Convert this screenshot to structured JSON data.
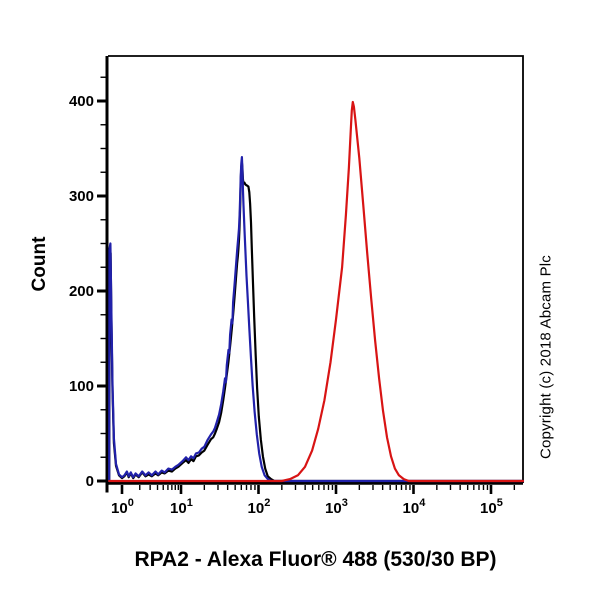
{
  "figure": {
    "title": "RPA2 - Alexa Fluor® 488 (530/30 BP)",
    "y_axis_title": "Count",
    "copyright": "Copyright (c) 2018 Abcam Plc"
  },
  "colors": {
    "background": "#ffffff",
    "axis": "#000000",
    "black_curve": "#000000",
    "blue_curve": "#2121aa",
    "red_curve": "#d81414"
  },
  "chart_data": {
    "type": "line",
    "subtype": "flow-cytometry-histogram",
    "title": "RPA2 - Alexa Fluor® 488 (530/30 BP)",
    "xlabel": "RPA2 - Alexa Fluor® 488 (530/30 BP)",
    "ylabel": "Count",
    "xscale": "log",
    "grid": false,
    "legend": "none",
    "xtick_exponents": [
      0,
      1,
      2,
      3,
      4,
      5
    ],
    "yticks": [
      0,
      100,
      200,
      300,
      400
    ],
    "y_minor_step": 25,
    "ylim": [
      0,
      447
    ],
    "xlim": [
      0.6,
      260000
    ],
    "series": [
      {
        "name": "black-curve",
        "color": "#000000",
        "peak_x": 60,
        "peak_count": 336,
        "points": [
          [
            0.607,
            0
          ],
          [
            0.62,
            236
          ],
          [
            0.64,
            240
          ],
          [
            0.66,
            170
          ],
          [
            0.69,
            95
          ],
          [
            0.73,
            40
          ],
          [
            0.79,
            16
          ],
          [
            0.89,
            6
          ],
          [
            1.0,
            3
          ],
          [
            1.1,
            5
          ],
          [
            1.21,
            9
          ],
          [
            1.3,
            4
          ],
          [
            1.41,
            8
          ],
          [
            1.55,
            3
          ],
          [
            1.7,
            7
          ],
          [
            1.92,
            4
          ],
          [
            2.2,
            9
          ],
          [
            2.5,
            5
          ],
          [
            2.82,
            7
          ],
          [
            3.2,
            5
          ],
          [
            3.7,
            8
          ],
          [
            4.1,
            6
          ],
          [
            4.7,
            9
          ],
          [
            5.3,
            8
          ],
          [
            6.1,
            11
          ],
          [
            7.0,
            10
          ],
          [
            8.0,
            13
          ],
          [
            9.0,
            15
          ],
          [
            10.5,
            19
          ],
          [
            11.6,
            22
          ],
          [
            12.5,
            19
          ],
          [
            13.5,
            23
          ],
          [
            14.5,
            21
          ],
          [
            15.6,
            26
          ],
          [
            17,
            27
          ],
          [
            18.5,
            30
          ],
          [
            20,
            32
          ],
          [
            22,
            38
          ],
          [
            24.4,
            44
          ],
          [
            26,
            46
          ],
          [
            27.5,
            50
          ],
          [
            29,
            55
          ],
          [
            31,
            62
          ],
          [
            33,
            72
          ],
          [
            35,
            85
          ],
          [
            37,
            98
          ],
          [
            39,
            112
          ],
          [
            41,
            126
          ],
          [
            43,
            142
          ],
          [
            45,
            158
          ],
          [
            47,
            175
          ],
          [
            49,
            193
          ],
          [
            51,
            211
          ],
          [
            53,
            229
          ],
          [
            54,
            236
          ],
          [
            55,
            244
          ],
          [
            56,
            254
          ],
          [
            57,
            269
          ],
          [
            58,
            290
          ],
          [
            59,
            315
          ],
          [
            60,
            330
          ],
          [
            60.8,
            336
          ],
          [
            62,
            330
          ],
          [
            63,
            318
          ],
          [
            64,
            313
          ],
          [
            66,
            314
          ],
          [
            68,
            312
          ],
          [
            71,
            311
          ],
          [
            74,
            310
          ],
          [
            76,
            304
          ],
          [
            78,
            292
          ],
          [
            80,
            272
          ],
          [
            82,
            245
          ],
          [
            85,
            208
          ],
          [
            88,
            172
          ],
          [
            92,
            132
          ],
          [
            96,
            98
          ],
          [
            101,
            68
          ],
          [
            107,
            44
          ],
          [
            114,
            26
          ],
          [
            122,
            13
          ],
          [
            132,
            5
          ],
          [
            145,
            2
          ],
          [
            160,
            0
          ],
          [
            1000,
            0
          ],
          [
            259000,
            0
          ]
        ]
      },
      {
        "name": "blue-curve",
        "color": "#2121aa",
        "peak_x": 61,
        "peak_count": 341,
        "points": [
          [
            0.607,
            0
          ],
          [
            0.615,
            244
          ],
          [
            0.635,
            250
          ],
          [
            0.66,
            178
          ],
          [
            0.69,
            102
          ],
          [
            0.73,
            45
          ],
          [
            0.79,
            18
          ],
          [
            0.89,
            7
          ],
          [
            1.0,
            4
          ],
          [
            1.1,
            6
          ],
          [
            1.21,
            10
          ],
          [
            1.3,
            5
          ],
          [
            1.41,
            9
          ],
          [
            1.55,
            4
          ],
          [
            1.7,
            8
          ],
          [
            1.92,
            5
          ],
          [
            2.2,
            10
          ],
          [
            2.5,
            6
          ],
          [
            2.82,
            9
          ],
          [
            3.2,
            6
          ],
          [
            3.7,
            10
          ],
          [
            4.1,
            7
          ],
          [
            4.7,
            11
          ],
          [
            5.3,
            9
          ],
          [
            6.1,
            13
          ],
          [
            7.0,
            12
          ],
          [
            8.0,
            15
          ],
          [
            9.0,
            17
          ],
          [
            10.5,
            21
          ],
          [
            11.6,
            25
          ],
          [
            12.5,
            22
          ],
          [
            13.5,
            26
          ],
          [
            14.5,
            24
          ],
          [
            15.6,
            29
          ],
          [
            17,
            30
          ],
          [
            18.5,
            34
          ],
          [
            20,
            36
          ],
          [
            22,
            43
          ],
          [
            24.4,
            49
          ],
          [
            26,
            52
          ],
          [
            27.5,
            56
          ],
          [
            29,
            62
          ],
          [
            31,
            70
          ],
          [
            33,
            81
          ],
          [
            35,
            94
          ],
          [
            37,
            108
          ],
          [
            38,
            104
          ],
          [
            39,
            122
          ],
          [
            41,
            138
          ],
          [
            42,
            135
          ],
          [
            43,
            154
          ],
          [
            45,
            170
          ],
          [
            46,
            166
          ],
          [
            47,
            188
          ],
          [
            49,
            206
          ],
          [
            51,
            224
          ],
          [
            53,
            242
          ],
          [
            55,
            258
          ],
          [
            56,
            266
          ],
          [
            57,
            280
          ],
          [
            58,
            300
          ],
          [
            59,
            320
          ],
          [
            60,
            334
          ],
          [
            61,
            341
          ],
          [
            62,
            328
          ],
          [
            63,
            308
          ],
          [
            64,
            290
          ],
          [
            66,
            264
          ],
          [
            68,
            240
          ],
          [
            70,
            216
          ],
          [
            73,
            189
          ],
          [
            76,
            161
          ],
          [
            80,
            129
          ],
          [
            84,
            101
          ],
          [
            89,
            73
          ],
          [
            95,
            49
          ],
          [
            102,
            29
          ],
          [
            110,
            15
          ],
          [
            120,
            6
          ],
          [
            132,
            2
          ],
          [
            146,
            0
          ],
          [
            1000,
            0
          ],
          [
            259000,
            0
          ]
        ]
      },
      {
        "name": "red-curve",
        "color": "#d81414",
        "peak_x": 1600,
        "peak_count": 399,
        "points": [
          [
            0.607,
            0
          ],
          [
            10,
            0
          ],
          [
            100,
            0
          ],
          [
            200,
            0
          ],
          [
            255,
            2
          ],
          [
            322,
            6
          ],
          [
            398,
            15
          ],
          [
            492,
            32
          ],
          [
            590,
            55
          ],
          [
            708,
            85
          ],
          [
            848,
            125
          ],
          [
            1000,
            170
          ],
          [
            1198,
            225
          ],
          [
            1343,
            280
          ],
          [
            1466,
            330
          ],
          [
            1553,
            370
          ],
          [
            1599,
            390
          ],
          [
            1646,
            399
          ],
          [
            1700,
            394
          ],
          [
            1778,
            380
          ],
          [
            2000,
            340
          ],
          [
            2250,
            290
          ],
          [
            2529,
            240
          ],
          [
            2845,
            192
          ],
          [
            3199,
            148
          ],
          [
            3598,
            108
          ],
          [
            4046,
            74
          ],
          [
            4551,
            46
          ],
          [
            5118,
            26
          ],
          [
            5756,
            13
          ],
          [
            6473,
            6
          ],
          [
            7497,
            2
          ],
          [
            8684,
            0
          ],
          [
            259000,
            0
          ]
        ]
      }
    ]
  }
}
